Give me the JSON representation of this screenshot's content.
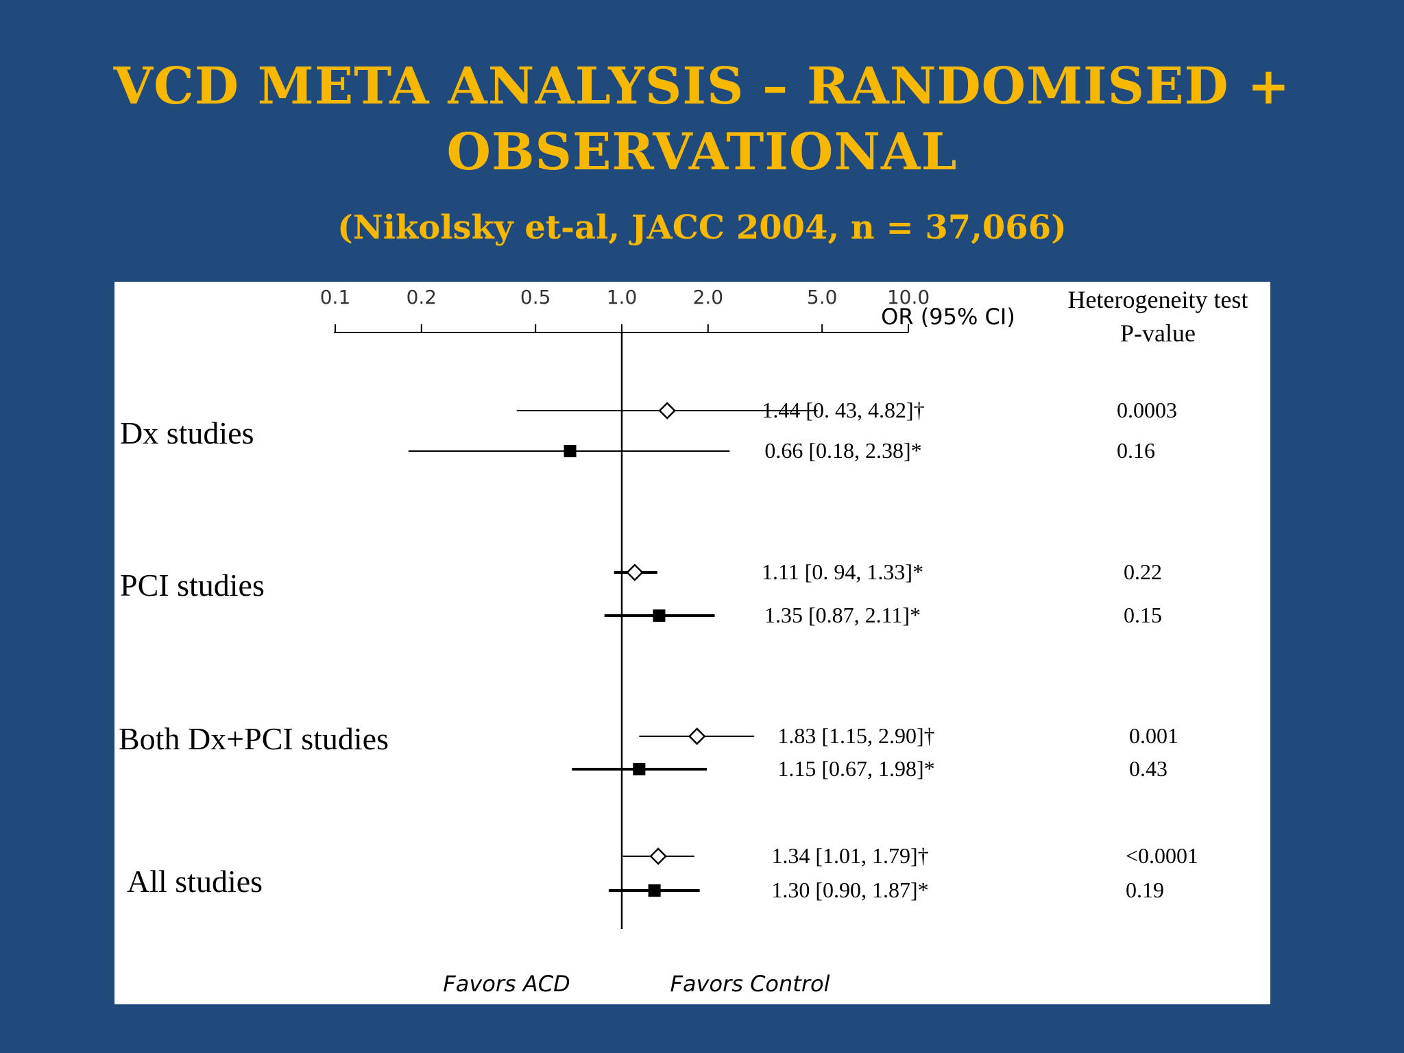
{
  "slide": {
    "title_line1": "VCD META ANALYSIS – RANDOMISED +",
    "title_line2": "OBSERVATIONAL",
    "subtitle": "(Nikolsky et-al, JACC 2004, n = 37,066)"
  },
  "colors": {
    "background": "#204a7c",
    "title": "#f9b800",
    "panel": "#ffffff",
    "ink": "#000000"
  },
  "chart_data": {
    "type": "forest",
    "scale": "log",
    "xlim": [
      0.1,
      10.0
    ],
    "reference_line": 1.0,
    "axis_ticks": [
      "0.1",
      "0.2",
      "0.5",
      "1.0",
      "2.0",
      "5.0",
      "10.0"
    ],
    "tick_values": [
      0.1,
      0.2,
      0.5,
      1.0,
      2.0,
      5.0,
      10.0
    ],
    "column_headers": {
      "or": "OR  (95% CI)",
      "het_line1": "Heterogeneity test",
      "het_line2": "P-value"
    },
    "x_annotations": {
      "left": "Favors ACD",
      "right": "Favors Control"
    },
    "groups": [
      {
        "label": "Dx studies",
        "rows": [
          {
            "marker": "open-diamond",
            "or": 1.44,
            "lo": 0.43,
            "hi": 4.82,
            "text": "1.44 [0. 43, 4.82]†",
            "p": "0.0003"
          },
          {
            "marker": "filled-square",
            "or": 0.66,
            "lo": 0.18,
            "hi": 2.38,
            "text": "0.66 [0.18, 2.38]*",
            "p": "0.16"
          }
        ]
      },
      {
        "label": "PCI studies",
        "rows": [
          {
            "marker": "open-diamond",
            "or": 1.11,
            "lo": 0.94,
            "hi": 1.33,
            "text": "1.11 [0. 94, 1.33]*",
            "p": "0.22"
          },
          {
            "marker": "filled-square",
            "or": 1.35,
            "lo": 0.87,
            "hi": 2.11,
            "text": "1.35 [0.87, 2.11]*",
            "p": "0.15"
          }
        ]
      },
      {
        "label": "Both Dx+PCI studies",
        "rows": [
          {
            "marker": "open-diamond",
            "or": 1.83,
            "lo": 1.15,
            "hi": 2.9,
            "text": "1.83 [1.15, 2.90]†",
            "p": "0.001"
          },
          {
            "marker": "filled-square",
            "or": 1.15,
            "lo": 0.67,
            "hi": 1.98,
            "text": "1.15 [0.67, 1.98]*",
            "p": "0.43"
          }
        ]
      },
      {
        "label": "All studies",
        "rows": [
          {
            "marker": "open-diamond",
            "or": 1.34,
            "lo": 1.01,
            "hi": 1.79,
            "text": "1.34 [1.01, 1.79]†",
            "p": "<0.0001"
          },
          {
            "marker": "filled-square",
            "or": 1.3,
            "lo": 0.9,
            "hi": 1.87,
            "text": "1.30 [0.90, 1.87]*",
            "p": "0.19"
          }
        ]
      }
    ]
  }
}
